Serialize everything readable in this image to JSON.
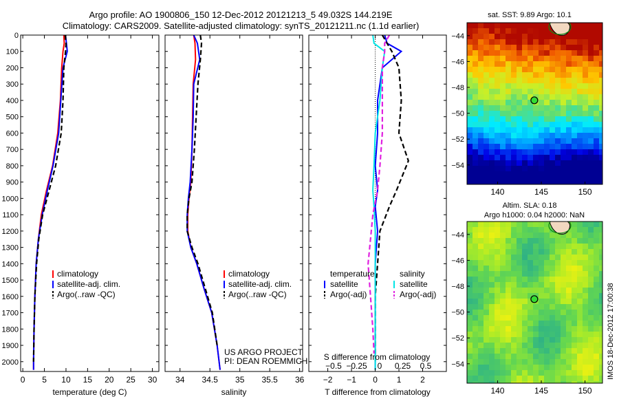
{
  "header": {
    "title_line1": "Argo profile: AO 1900806_150 12-Dec-2012 20121213_5 49.032S 144.219E",
    "title_line2": "Climatology: CARS2009. Satellite-adjusted climatology: synTS_20121211.nc (1.1d earlier)"
  },
  "sidebar_stamp": "IMOS 18-Dec-2012 17:00:38",
  "colors": {
    "climatology": "#ff0000",
    "satellite": "#0000ff",
    "argo": "#000000",
    "sat_diff": "#00e5e5",
    "argo_s_diff": "#e020e0"
  },
  "chart_data": [
    {
      "id": "temperature",
      "type": "line",
      "xlabel": "temperature (deg C)",
      "ylabel": "",
      "xlim": [
        -0.5,
        31.5
      ],
      "ylim": [
        2060,
        0
      ],
      "xticks": [
        0,
        5,
        10,
        15,
        20,
        25,
        30
      ],
      "yticks": [
        0,
        100,
        200,
        300,
        400,
        500,
        600,
        700,
        800,
        900,
        1000,
        1100,
        1200,
        1300,
        1400,
        1500,
        1600,
        1700,
        1800,
        1900,
        2000
      ],
      "legend": {
        "position": "lower-center",
        "entries": [
          "climatology",
          "satellite-adj. clim.",
          "Argo(..raw -QC)"
        ]
      },
      "series": [
        {
          "name": "climatology",
          "color": "#ff0000",
          "dash": "solid",
          "x": [
            9.5,
            9.6,
            9.3,
            9.0,
            8.7,
            8.1,
            6.9,
            5.5,
            4.3,
            3.6,
            3.1,
            2.8,
            2.6,
            2.5,
            2.5
          ],
          "y": [
            0,
            50,
            100,
            200,
            400,
            600,
            800,
            950,
            1100,
            1250,
            1400,
            1600,
            1800,
            2000,
            2050
          ]
        },
        {
          "name": "satellite-adj. clim.",
          "color": "#0000ff",
          "dash": "solid",
          "x": [
            9.9,
            10.1,
            10.3,
            9.3,
            8.8,
            8.3,
            7.0,
            5.7,
            4.5,
            3.6,
            3.1,
            2.8,
            2.6,
            2.5,
            2.5
          ],
          "y": [
            0,
            50,
            100,
            200,
            400,
            600,
            800,
            950,
            1100,
            1250,
            1400,
            1600,
            1800,
            2000,
            2050
          ]
        },
        {
          "name": "Argo(..raw -QC)",
          "color": "#000000",
          "dash": "dash",
          "x": [
            9.8,
            10.0,
            9.9,
            9.5,
            9.3,
            8.9,
            7.6,
            6.1,
            4.6,
            3.7,
            3.2,
            2.8,
            2.6,
            2.5
          ],
          "y": [
            0,
            50,
            100,
            200,
            400,
            600,
            800,
            950,
            1100,
            1250,
            1400,
            1600,
            1800,
            2000
          ]
        }
      ]
    },
    {
      "id": "salinity",
      "type": "line",
      "xlabel": "salinity",
      "ylabel": "",
      "xlim": [
        33.75,
        36.05
      ],
      "ylim": [
        2060,
        0
      ],
      "xticks": [
        34,
        34.5,
        35,
        35.5,
        36
      ],
      "legend": {
        "position": "lower-center",
        "entries": [
          "climatology",
          "satellite-adj. clim.",
          "Argo(..raw -QC)"
        ]
      },
      "annotation": [
        "US ARGO PROJECT",
        "PI: DEAN ROEMMICH"
      ],
      "series": [
        {
          "name": "climatology",
          "color": "#ff0000",
          "dash": "solid",
          "x": [
            34.23,
            34.25,
            34.26,
            34.22,
            34.21,
            34.2,
            34.18,
            34.15,
            34.13,
            34.13,
            34.18,
            34.28,
            34.4,
            34.53,
            34.62,
            34.67
          ],
          "y": [
            0,
            50,
            150,
            300,
            500,
            700,
            900,
            1000,
            1100,
            1200,
            1300,
            1400,
            1550,
            1700,
            1900,
            2050
          ]
        },
        {
          "name": "satellite-adj. clim.",
          "color": "#0000ff",
          "dash": "solid",
          "x": [
            34.23,
            34.29,
            34.33,
            34.23,
            34.22,
            34.2,
            34.17,
            34.14,
            34.12,
            34.12,
            34.18,
            34.28,
            34.4,
            34.53,
            34.62,
            34.67
          ],
          "y": [
            0,
            50,
            150,
            300,
            500,
            700,
            900,
            1000,
            1100,
            1200,
            1300,
            1400,
            1550,
            1700,
            1900,
            2050
          ]
        },
        {
          "name": "Argo(..raw -QC)",
          "color": "#000000",
          "dash": "dash",
          "x": [
            34.34,
            34.36,
            34.34,
            34.3,
            34.27,
            34.24,
            34.2,
            34.15,
            34.12,
            34.12,
            34.2,
            34.3,
            34.42,
            34.54,
            34.62
          ],
          "y": [
            0,
            50,
            150,
            300,
            500,
            700,
            900,
            1000,
            1100,
            1200,
            1300,
            1400,
            1550,
            1700,
            1900
          ]
        }
      ]
    },
    {
      "id": "differences",
      "type": "line",
      "xlabel": "T difference from climatology",
      "xlabel_top": "S difference from climatology",
      "ylabel": "",
      "xlim": [
        -2.8,
        3.0
      ],
      "ylim": [
        2060,
        0
      ],
      "xticks": [
        -2,
        -1,
        0,
        1,
        2
      ],
      "s_ticks": [
        -0.5,
        -0.25,
        0,
        0.25,
        0.5
      ],
      "legend": {
        "position": "lower-center",
        "groups": [
          {
            "title": "temperature",
            "entries": [
              "satellite",
              "Argo(-adj)"
            ]
          },
          {
            "title": "salinity",
            "entries": [
              "satellite",
              "Argo(-adj)"
            ]
          }
        ]
      },
      "series": [
        {
          "name": "temperature satellite",
          "color": "#0000ff",
          "dash": "solid",
          "x": [
            0.4,
            0.5,
            1.1,
            0.3,
            0.1,
            0.1,
            0.0,
            0.1,
            0.0,
            0.1,
            0.0,
            0.0,
            0.0,
            0.0,
            0.0
          ],
          "y": [
            0,
            50,
            100,
            200,
            400,
            600,
            800,
            950,
            1050,
            1200,
            1400,
            1600,
            1800,
            2000,
            2050
          ]
        },
        {
          "name": "temperature Argo(-adj)",
          "color": "#000000",
          "dash": "dash",
          "x": [
            0.3,
            0.5,
            0.7,
            1.0,
            1.1,
            1.0,
            1.4,
            0.9,
            0.6,
            0.2,
            0.1,
            0.0,
            0.0,
            0.0
          ],
          "y": [
            0,
            50,
            100,
            200,
            400,
            600,
            770,
            950,
            1050,
            1200,
            1400,
            1600,
            1800,
            2000
          ]
        },
        {
          "name": "salinity satellite",
          "color": "#00e5e5",
          "dash": "solid",
          "x": [
            -0.1,
            -0.05,
            0.4,
            0.3,
            0.2,
            0.0,
            -0.05,
            -0.1,
            -0.05,
            0.0,
            0.0,
            0.0,
            0.0,
            0.0,
            0.0
          ],
          "y": [
            0,
            50,
            100,
            200,
            400,
            600,
            800,
            950,
            1050,
            1200,
            1400,
            1600,
            1800,
            2000,
            2050
          ]
        },
        {
          "name": "salinity Argo(-adj)",
          "color": "#e020e0",
          "dash": "dash",
          "x": [
            0.6,
            0.4,
            0.4,
            0.3,
            0.3,
            0.3,
            0.2,
            0.1,
            -0.1,
            -0.2,
            -0.3,
            -0.2,
            -0.1,
            -0.05
          ],
          "y": [
            0,
            50,
            100,
            200,
            400,
            600,
            800,
            950,
            1100,
            1250,
            1400,
            1600,
            1800,
            1950
          ]
        }
      ]
    },
    {
      "id": "sst_map",
      "type": "heatmap",
      "title": "sat. SST: 9.89  Argo: 10.1",
      "xlim": [
        136.5,
        152
      ],
      "ylim": [
        -55.5,
        -43
      ],
      "xticks": [
        140,
        145,
        150
      ],
      "yticks": [
        -44,
        -46,
        -48,
        -50,
        -52,
        -54
      ],
      "marker": {
        "lon": 144.2,
        "lat": -49.0
      }
    },
    {
      "id": "sla_map",
      "type": "heatmap",
      "title_line1": "Altim. SLA: 0.18",
      "title_line2": "Argo h1000: 0.04 h2000: NaN",
      "xlim": [
        136.5,
        152
      ],
      "ylim": [
        -55.5,
        -43
      ],
      "xticks": [
        140,
        145,
        150
      ],
      "yticks": [
        -44,
        -46,
        -48,
        -50,
        -52,
        -54
      ],
      "marker": {
        "lon": 144.2,
        "lat": -49.0
      }
    }
  ]
}
